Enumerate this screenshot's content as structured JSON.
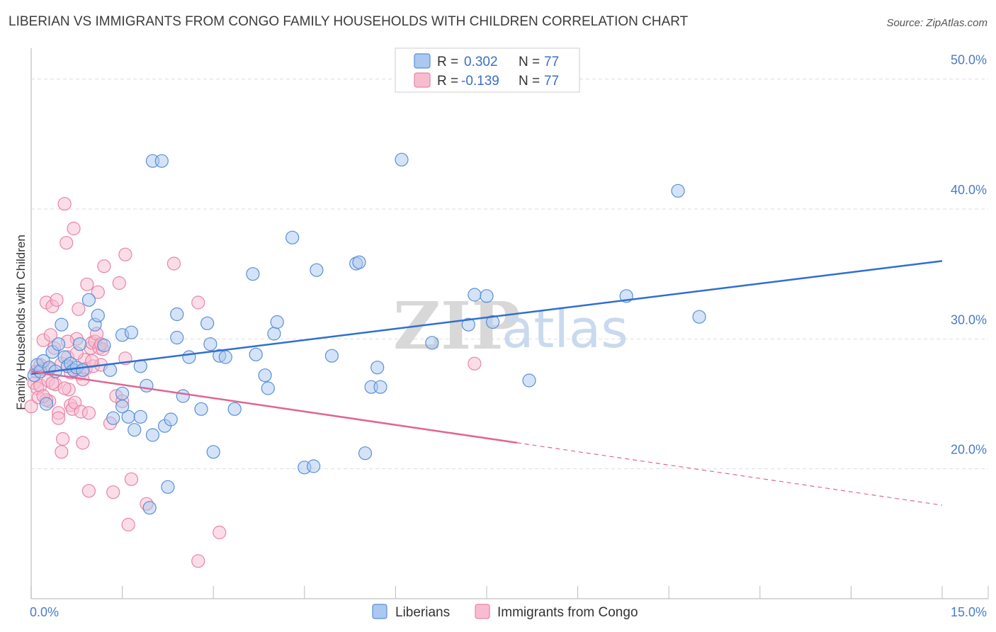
{
  "header": {
    "title": "LIBERIAN VS IMMIGRANTS FROM CONGO FAMILY HOUSEHOLDS WITH CHILDREN CORRELATION CHART",
    "source": "Source: ZipAtlas.com"
  },
  "watermark": {
    "zip": "ZIP",
    "atlas": "atlas"
  },
  "colors": {
    "liberian_fill": "#aac8f0",
    "liberian_stroke": "#5b8fd6",
    "liberian_line": "#2f6fd0",
    "congo_fill": "#f7bcd0",
    "congo_stroke": "#e685a6",
    "congo_line": "#e0668f",
    "grid": "#dddddd",
    "axis_text": "#4a7cc7"
  },
  "legend": {
    "items": [
      {
        "r_label": "R =",
        "r_value": "0.302",
        "n_label": "N =",
        "n_value": "77"
      },
      {
        "r_label": "R =",
        "r_value": "-0.139",
        "n_label": "N =",
        "n_value": "77"
      }
    ]
  },
  "chart_data": {
    "type": "scatter",
    "title": "LIBERIAN VS IMMIGRANTS FROM CONGO FAMILY HOUSEHOLDS WITH CHILDREN CORRELATION CHART",
    "xlabel": "",
    "ylabel": "Family Households with Children",
    "xlim": [
      0,
      15
    ],
    "ylim": [
      10,
      52
    ],
    "x_tick_labels": [
      "0.0%",
      "15.0%"
    ],
    "y_ticks": [
      20,
      30,
      40,
      50
    ],
    "y_tick_labels": [
      "20.0%",
      "30.0%",
      "40.0%",
      "50.0%"
    ],
    "series": [
      {
        "name": "Liberians",
        "r": 0.302,
        "n": 77,
        "trend": {
          "x": [
            0,
            15
          ],
          "y": [
            27.3,
            36.0
          ],
          "dashed_from": null
        },
        "points": [
          [
            0.05,
            27.2
          ],
          [
            0.1,
            28.0
          ],
          [
            0.15,
            27.5
          ],
          [
            0.2,
            28.3
          ],
          [
            0.25,
            25.0
          ],
          [
            0.3,
            27.8
          ],
          [
            0.35,
            29.0
          ],
          [
            0.45,
            29.6
          ],
          [
            0.5,
            31.1
          ],
          [
            0.55,
            28.6
          ],
          [
            0.6,
            27.9
          ],
          [
            0.65,
            28.1
          ],
          [
            0.7,
            27.6
          ],
          [
            0.75,
            27.8
          ],
          [
            0.8,
            29.6
          ],
          [
            0.85,
            27.6
          ],
          [
            1.05,
            31.1
          ],
          [
            1.1,
            31.8
          ],
          [
            1.2,
            29.5
          ],
          [
            1.3,
            27.6
          ],
          [
            1.5,
            25.8
          ],
          [
            1.6,
            24.0
          ],
          [
            1.5,
            24.8
          ],
          [
            1.5,
            30.3
          ],
          [
            1.65,
            30.5
          ],
          [
            1.35,
            23.9
          ],
          [
            1.7,
            23.0
          ],
          [
            1.8,
            27.9
          ],
          [
            1.8,
            24.0
          ],
          [
            1.9,
            26.4
          ],
          [
            1.95,
            17.0
          ],
          [
            2.0,
            22.6
          ],
          [
            2.0,
            43.7
          ],
          [
            2.15,
            43.7
          ],
          [
            2.2,
            23.3
          ],
          [
            2.25,
            18.6
          ],
          [
            2.3,
            23.8
          ],
          [
            2.4,
            30.1
          ],
          [
            2.4,
            31.9
          ],
          [
            2.5,
            25.6
          ],
          [
            2.6,
            28.6
          ],
          [
            2.8,
            24.6
          ],
          [
            2.9,
            31.2
          ],
          [
            2.95,
            29.6
          ],
          [
            3.0,
            21.3
          ],
          [
            3.1,
            28.7
          ],
          [
            3.2,
            28.6
          ],
          [
            3.35,
            24.6
          ],
          [
            3.65,
            35.0
          ],
          [
            3.7,
            28.8
          ],
          [
            3.85,
            27.2
          ],
          [
            3.9,
            26.2
          ],
          [
            4.0,
            30.4
          ],
          [
            4.05,
            31.3
          ],
          [
            4.3,
            37.8
          ],
          [
            4.5,
            20.1
          ],
          [
            4.65,
            20.2
          ],
          [
            4.7,
            35.3
          ],
          [
            4.95,
            28.7
          ],
          [
            5.35,
            35.8
          ],
          [
            5.4,
            35.9
          ],
          [
            5.5,
            21.2
          ],
          [
            5.6,
            26.3
          ],
          [
            5.7,
            27.8
          ],
          [
            5.75,
            26.3
          ],
          [
            6.1,
            43.8
          ],
          [
            6.6,
            29.7
          ],
          [
            7.2,
            31.1
          ],
          [
            7.3,
            33.4
          ],
          [
            7.5,
            33.3
          ],
          [
            7.6,
            31.3
          ],
          [
            8.2,
            26.8
          ],
          [
            9.8,
            33.3
          ],
          [
            10.65,
            41.4
          ],
          [
            11.0,
            31.7
          ],
          [
            0.95,
            33.0
          ],
          [
            0.4,
            27.5
          ]
        ]
      },
      {
        "name": "Immigrants from Congo",
        "r": -0.139,
        "n": 77,
        "trend": {
          "x": [
            0,
            15
          ],
          "y": [
            27.5,
            17.2
          ],
          "dashed_from": 8
        },
        "points": [
          [
            0.0,
            24.8
          ],
          [
            0.05,
            26.6
          ],
          [
            0.08,
            27.5
          ],
          [
            0.1,
            26.2
          ],
          [
            0.12,
            25.5
          ],
          [
            0.15,
            26.4
          ],
          [
            0.18,
            27.7
          ],
          [
            0.2,
            29.9
          ],
          [
            0.25,
            32.8
          ],
          [
            0.28,
            26.8
          ],
          [
            0.3,
            25.2
          ],
          [
            0.32,
            30.3
          ],
          [
            0.35,
            32.5
          ],
          [
            0.38,
            29.3
          ],
          [
            0.4,
            26.5
          ],
          [
            0.42,
            33.0
          ],
          [
            0.45,
            24.3
          ],
          [
            0.5,
            28.1
          ],
          [
            0.52,
            22.3
          ],
          [
            0.55,
            40.4
          ],
          [
            0.58,
            37.4
          ],
          [
            0.6,
            28.6
          ],
          [
            0.62,
            26.1
          ],
          [
            0.65,
            24.9
          ],
          [
            0.68,
            24.6
          ],
          [
            0.7,
            27.6
          ],
          [
            0.72,
            25.1
          ],
          [
            0.75,
            30.0
          ],
          [
            0.78,
            32.3
          ],
          [
            0.8,
            27.3
          ],
          [
            0.82,
            24.4
          ],
          [
            0.85,
            22.0
          ],
          [
            0.88,
            28.4
          ],
          [
            0.9,
            27.7
          ],
          [
            0.92,
            34.2
          ],
          [
            0.95,
            24.3
          ],
          [
            0.98,
            29.3
          ],
          [
            1.0,
            29.7
          ],
          [
            1.02,
            27.9
          ],
          [
            1.05,
            29.8
          ],
          [
            1.08,
            30.4
          ],
          [
            1.1,
            33.6
          ],
          [
            1.12,
            29.3
          ],
          [
            1.15,
            28.0
          ],
          [
            1.18,
            29.2
          ],
          [
            1.2,
            35.6
          ],
          [
            1.3,
            23.5
          ],
          [
            1.35,
            18.2
          ],
          [
            1.4,
            25.6
          ],
          [
            1.45,
            34.3
          ],
          [
            1.5,
            25.2
          ],
          [
            1.55,
            36.5
          ],
          [
            1.6,
            15.7
          ],
          [
            1.65,
            19.2
          ],
          [
            1.9,
            17.3
          ],
          [
            2.35,
            35.8
          ],
          [
            2.75,
            12.9
          ],
          [
            2.75,
            32.8
          ],
          [
            3.1,
            15.1
          ],
          [
            7.3,
            28.1
          ],
          [
            0.7,
            38.5
          ],
          [
            0.95,
            18.3
          ],
          [
            1.55,
            28.5
          ],
          [
            0.3,
            27.7
          ],
          [
            0.6,
            29.8
          ],
          [
            0.5,
            21.3
          ],
          [
            0.25,
            25.3
          ],
          [
            0.15,
            28.0
          ],
          [
            0.45,
            23.9
          ],
          [
            0.85,
            26.9
          ],
          [
            1.15,
            29.6
          ],
          [
            0.35,
            26.6
          ],
          [
            0.55,
            26.2
          ],
          [
            1.0,
            28.3
          ],
          [
            0.2,
            25.6
          ],
          [
            0.65,
            27.4
          ],
          [
            0.75,
            28.9
          ]
        ]
      }
    ],
    "legend_position": "top-center"
  },
  "bottom_legend": {
    "items": [
      {
        "label": "Liberians"
      },
      {
        "label": "Immigrants from Congo"
      }
    ]
  }
}
